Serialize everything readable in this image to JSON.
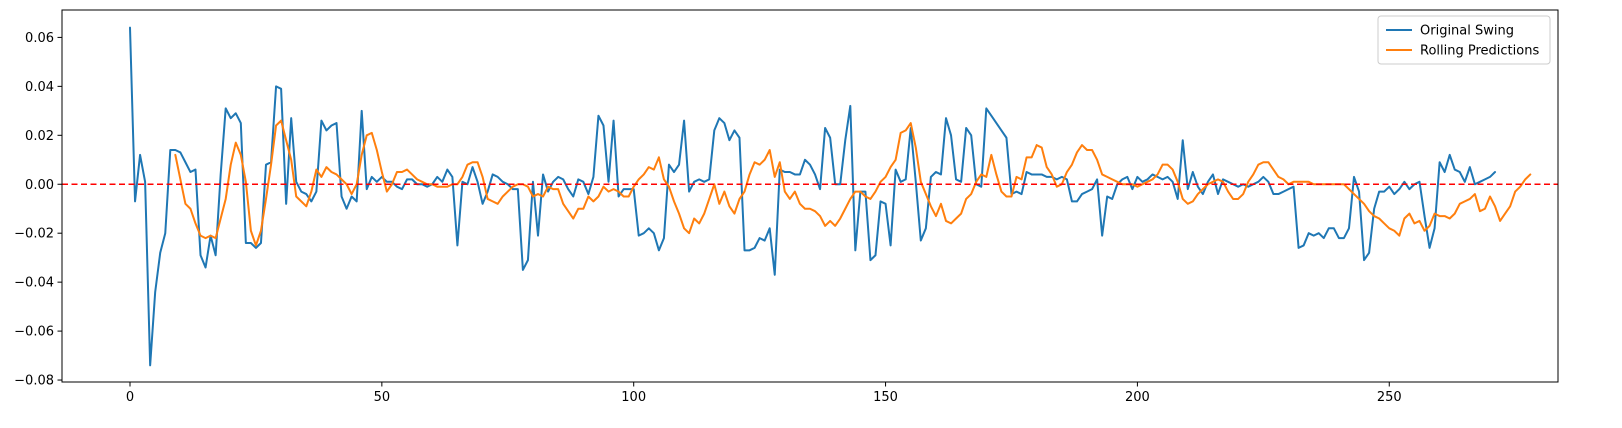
{
  "chart_data": {
    "type": "line",
    "title": "",
    "xlabel": "",
    "ylabel": "",
    "xlim": [
      -13.5,
      283.5
    ],
    "ylim": [
      -0.0808,
      0.0712
    ],
    "x_ticks": [
      0,
      50,
      100,
      150,
      200,
      250
    ],
    "x_tick_labels": [
      "0",
      "50",
      "100",
      "150",
      "200",
      "250"
    ],
    "y_ticks": [
      0.06,
      0.04,
      0.02,
      0.0,
      -0.02,
      -0.04,
      -0.06,
      -0.08
    ],
    "y_tick_labels": [
      "0.06",
      "0.04",
      "0.02",
      "0.00",
      "−0.02",
      "−0.04",
      "−0.06",
      "−0.08"
    ],
    "grid": false,
    "legend_position": "top-right",
    "reference_line": {
      "y": 0.0,
      "color": "#ff0000",
      "style": "dashed"
    },
    "series": [
      {
        "name": "Original Swing",
        "color": "#1f77b4",
        "x_start": 0,
        "values": [
          0.064,
          -0.007,
          0.012,
          0.001,
          -0.074,
          -0.044,
          -0.028,
          -0.02,
          0.014,
          0.014,
          0.013,
          0.009,
          0.005,
          0.006,
          -0.029,
          -0.034,
          -0.021,
          -0.029,
          0.004,
          0.031,
          0.027,
          0.029,
          0.025,
          -0.024,
          -0.024,
          -0.026,
          -0.024,
          0.008,
          0.009,
          0.04,
          0.039,
          -0.008,
          0.027,
          0.001,
          -0.003,
          -0.004,
          -0.007,
          -0.003,
          0.026,
          0.022,
          0.024,
          0.025,
          -0.005,
          -0.01,
          -0.005,
          -0.007,
          0.03,
          -0.002,
          0.003,
          0.001,
          0.003,
          0.001,
          0.001,
          -0.001,
          -0.002,
          0.002,
          0.002,
          0.0,
          0.0,
          -0.001,
          0.0,
          0.003,
          0.001,
          0.006,
          0.003,
          -0.025,
          0.001,
          0.0,
          0.007,
          0.001,
          -0.008,
          -0.003,
          0.004,
          0.003,
          0.001,
          0.0,
          -0.002,
          -0.002,
          -0.035,
          -0.031,
          0.001,
          -0.021,
          0.004,
          -0.003,
          0.001,
          0.003,
          0.002,
          -0.002,
          -0.005,
          0.002,
          0.001,
          -0.004,
          0.003,
          0.028,
          0.024,
          0.001,
          0.026,
          -0.005,
          -0.002,
          -0.002,
          -0.002,
          -0.021,
          -0.02,
          -0.018,
          -0.02,
          -0.027,
          -0.022,
          0.008,
          0.005,
          0.008,
          0.026,
          -0.003,
          0.001,
          0.002,
          0.001,
          0.002,
          0.022,
          0.027,
          0.025,
          0.018,
          0.022,
          0.019,
          -0.027,
          -0.027,
          -0.026,
          -0.022,
          -0.023,
          -0.018,
          -0.037,
          0.006,
          0.005,
          0.005,
          0.004,
          0.004,
          0.01,
          0.008,
          0.004,
          -0.002,
          0.023,
          0.019,
          0.0,
          0.0,
          0.018,
          0.032,
          -0.027,
          -0.003,
          -0.003,
          -0.031,
          -0.029,
          -0.007,
          -0.008,
          -0.025,
          0.006,
          0.001,
          0.002,
          0.023,
          0.001,
          -0.023,
          -0.018,
          0.003,
          0.005,
          0.004,
          0.027,
          0.02,
          0.002,
          0.001,
          0.023,
          0.02,
          0.0,
          -0.001,
          0.031,
          0.028,
          0.025,
          0.022,
          0.019,
          -0.004,
          -0.003,
          -0.004,
          0.005,
          0.004,
          0.004,
          0.004,
          0.003,
          0.003,
          0.002,
          0.003,
          0.002,
          -0.007,
          -0.007,
          -0.004,
          -0.003,
          -0.002,
          0.002,
          -0.021,
          -0.005,
          -0.006,
          0.0,
          0.002,
          0.003,
          -0.002,
          0.003,
          0.001,
          0.002,
          0.004,
          0.003,
          0.002,
          0.003,
          0.001,
          -0.006,
          0.018,
          -0.002,
          0.005,
          -0.001,
          -0.004,
          0.001,
          0.004,
          -0.004,
          0.002,
          0.001,
          0.0,
          -0.001,
          0.0,
          -0.001,
          0.0,
          0.001,
          0.003,
          0.001,
          -0.004,
          -0.004,
          -0.003,
          -0.002,
          -0.001,
          -0.026,
          -0.025,
          -0.02,
          -0.021,
          -0.02,
          -0.022,
          -0.018,
          -0.018,
          -0.022,
          -0.022,
          -0.018,
          0.003,
          -0.003,
          -0.031,
          -0.028,
          -0.01,
          -0.003,
          -0.003,
          -0.001,
          -0.004,
          -0.002,
          0.001,
          -0.002,
          0.0,
          0.001,
          -0.013,
          -0.026,
          -0.018,
          0.009,
          0.005,
          0.012,
          0.006,
          0.005,
          0.001,
          0.007,
          0.0,
          0.001,
          0.002,
          0.003,
          0.005
        ]
      },
      {
        "name": "Rolling Predictions",
        "color": "#ff7f0e",
        "x_start": 9,
        "values": [
          0.012,
          0.002,
          -0.008,
          -0.01,
          -0.016,
          -0.021,
          -0.022,
          -0.021,
          -0.022,
          -0.014,
          -0.006,
          0.008,
          0.017,
          0.012,
          0.001,
          -0.019,
          -0.025,
          -0.019,
          -0.006,
          0.008,
          0.024,
          0.026,
          0.018,
          0.01,
          -0.005,
          -0.007,
          -0.009,
          -0.003,
          0.006,
          0.003,
          0.007,
          0.005,
          0.004,
          0.002,
          0.0,
          -0.004,
          0.0,
          0.012,
          0.02,
          0.021,
          0.014,
          0.005,
          -0.003,
          0.0,
          0.005,
          0.005,
          0.006,
          0.004,
          0.002,
          0.001,
          0.0,
          0.0,
          -0.001,
          -0.001,
          -0.001,
          0.0,
          0.0,
          0.003,
          0.008,
          0.009,
          0.009,
          0.003,
          -0.006,
          -0.007,
          -0.008,
          -0.005,
          -0.003,
          -0.001,
          0.0,
          0.0,
          -0.001,
          -0.005,
          -0.004,
          -0.005,
          -0.001,
          -0.002,
          -0.002,
          -0.008,
          -0.011,
          -0.014,
          -0.01,
          -0.01,
          -0.005,
          -0.007,
          -0.005,
          -0.001,
          -0.003,
          -0.002,
          -0.003,
          -0.005,
          -0.005,
          -0.001,
          0.002,
          0.004,
          0.007,
          0.006,
          0.011,
          0.002,
          -0.001,
          -0.007,
          -0.012,
          -0.018,
          -0.02,
          -0.014,
          -0.016,
          -0.012,
          -0.006,
          0.0,
          -0.008,
          -0.003,
          -0.009,
          -0.012,
          -0.006,
          -0.003,
          0.004,
          0.009,
          0.008,
          0.01,
          0.014,
          0.003,
          0.009,
          -0.003,
          -0.006,
          -0.003,
          -0.008,
          -0.01,
          -0.01,
          -0.011,
          -0.013,
          -0.017,
          -0.015,
          -0.017,
          -0.014,
          -0.01,
          -0.006,
          -0.003,
          -0.003,
          -0.005,
          -0.006,
          -0.003,
          0.001,
          0.003,
          0.007,
          0.01,
          0.021,
          0.022,
          0.025,
          0.015,
          0.001,
          -0.004,
          -0.009,
          -0.013,
          -0.008,
          -0.015,
          -0.016,
          -0.014,
          -0.012,
          -0.006,
          -0.004,
          0.001,
          0.004,
          0.003,
          0.012,
          0.004,
          -0.003,
          -0.005,
          -0.005,
          0.003,
          0.002,
          0.011,
          0.011,
          0.016,
          0.015,
          0.007,
          0.004,
          -0.001,
          0.0,
          0.005,
          0.008,
          0.013,
          0.016,
          0.014,
          0.014,
          0.01,
          0.004,
          0.003,
          0.002,
          0.001,
          0.0,
          0.0,
          0.0,
          -0.001,
          0.0,
          0.001,
          0.002,
          0.004,
          0.008,
          0.008,
          0.006,
          0.001,
          -0.006,
          -0.008,
          -0.007,
          -0.004,
          -0.002,
          0.0,
          0.001,
          0.002,
          0.001,
          -0.003,
          -0.006,
          -0.006,
          -0.004,
          0.001,
          0.004,
          0.008,
          0.009,
          0.009,
          0.006,
          0.003,
          0.002,
          0.0,
          0.001,
          0.001,
          0.001,
          0.001,
          0.0,
          0.0,
          0.0,
          0.0,
          0.0,
          0.0,
          0.0,
          -0.002,
          -0.004,
          -0.006,
          -0.008,
          -0.011,
          -0.013,
          -0.014,
          -0.016,
          -0.018,
          -0.019,
          -0.021,
          -0.014,
          -0.012,
          -0.016,
          -0.015,
          -0.019,
          -0.017,
          -0.012,
          -0.013,
          -0.013,
          -0.014,
          -0.012,
          -0.008,
          -0.007,
          -0.006,
          -0.004,
          -0.011,
          -0.01,
          -0.005,
          -0.009,
          -0.015,
          -0.012,
          -0.009,
          -0.003,
          -0.001,
          0.002,
          0.004
        ]
      }
    ]
  }
}
